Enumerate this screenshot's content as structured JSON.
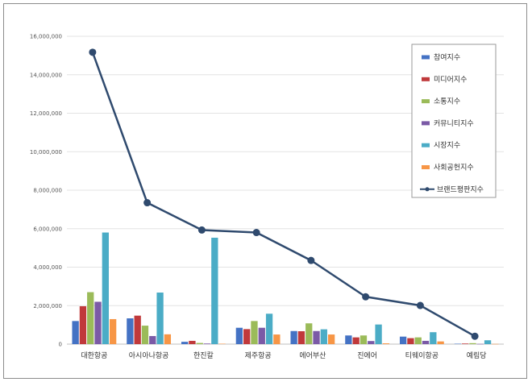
{
  "chart_data": {
    "type": "bar",
    "title": "",
    "xlabel": "",
    "ylabel": "",
    "ylim": [
      0,
      16000000
    ],
    "yticks": [
      "0",
      "2,000,000",
      "4,000,000",
      "6,000,000",
      "8,000,000",
      "10,000,000",
      "12,000,000",
      "14,000,000",
      "16,000,000"
    ],
    "ytick_values": [
      0,
      2000000,
      4000000,
      6000000,
      8000000,
      10000000,
      12000000,
      14000000,
      16000000
    ],
    "grid": true,
    "legend_position": "right",
    "categories": [
      "대한항공",
      "아시아나항공",
      "한진칼",
      "제주항공",
      "에어부산",
      "진에어",
      "티웨이항공",
      "예림당"
    ],
    "series": [
      {
        "name": "참여지수",
        "color": "#4472c4",
        "values": [
          1200000,
          1340000,
          120000,
          850000,
          680000,
          450000,
          390000,
          20000
        ]
      },
      {
        "name": "미디어지수",
        "color": "#c0393b",
        "values": [
          1970000,
          1480000,
          170000,
          780000,
          670000,
          350000,
          310000,
          30000
        ]
      },
      {
        "name": "소통지수",
        "color": "#9bbb59",
        "values": [
          2700000,
          960000,
          60000,
          1200000,
          1080000,
          450000,
          350000,
          50000
        ]
      },
      {
        "name": "커뮤니티지수",
        "color": "#7b5aa6",
        "values": [
          2200000,
          420000,
          30000,
          850000,
          680000,
          160000,
          170000,
          10000
        ]
      },
      {
        "name": "시장지수",
        "color": "#4bacc6",
        "values": [
          5800000,
          2680000,
          5530000,
          1580000,
          770000,
          1020000,
          620000,
          200000
        ]
      },
      {
        "name": "사회공헌지수",
        "color": "#f79646",
        "values": [
          1300000,
          510000,
          20000,
          500000,
          500000,
          40000,
          140000,
          10000
        ]
      }
    ],
    "line_series": {
      "name": "브랜드평판지수",
      "color": "#2f4a6e",
      "values": [
        15170000,
        7350000,
        5930000,
        5800000,
        4350000,
        2460000,
        2010000,
        410000
      ]
    }
  }
}
